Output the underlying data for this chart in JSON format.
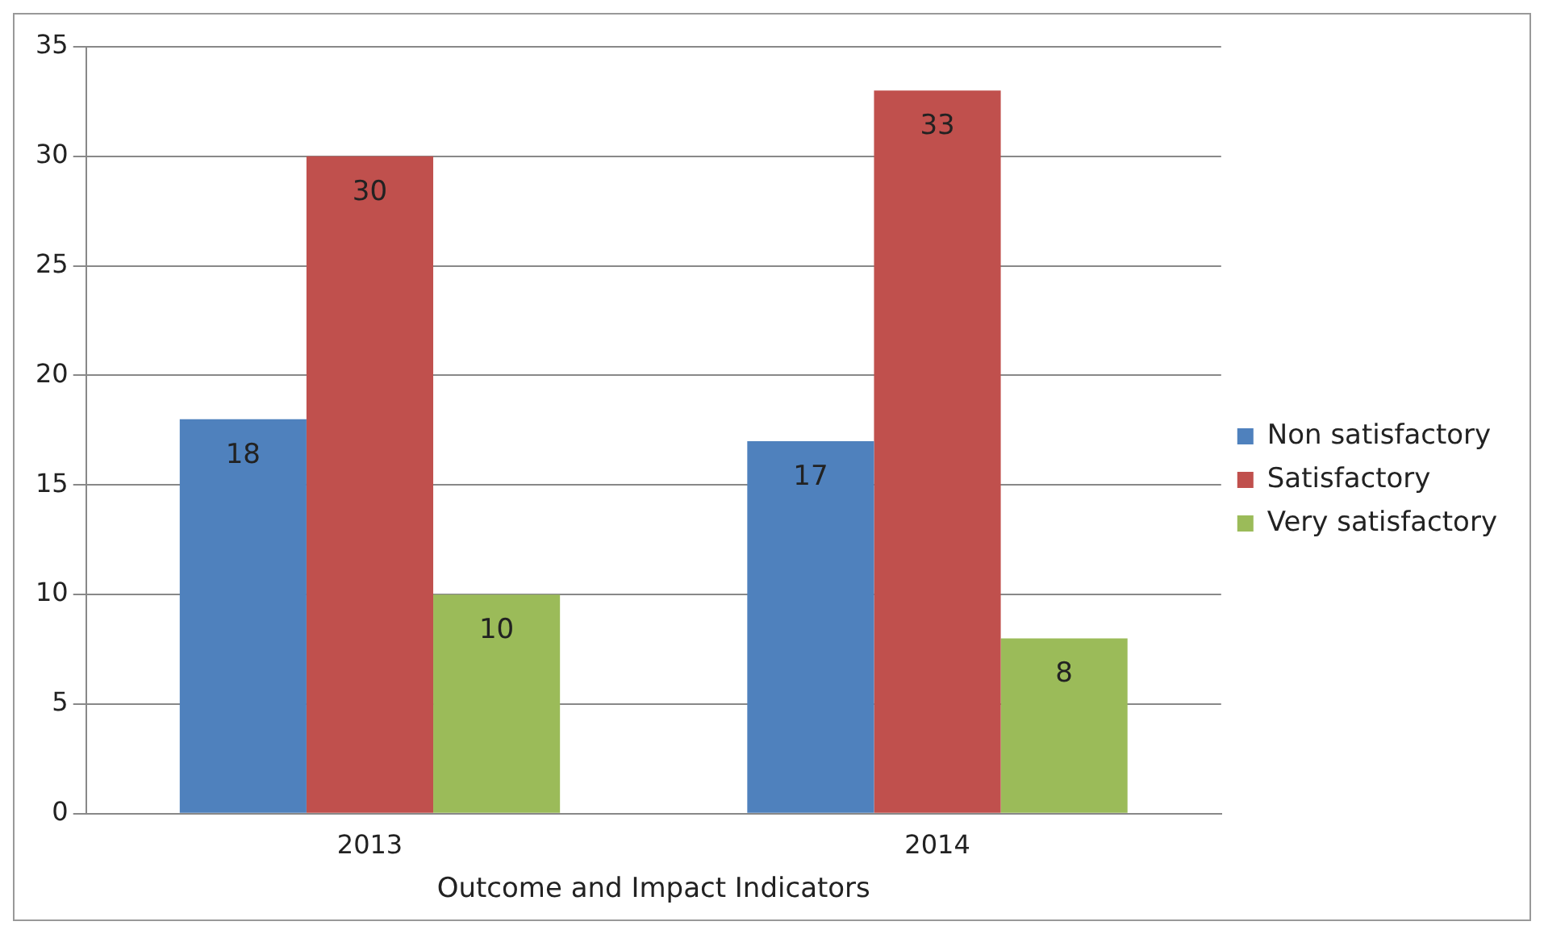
{
  "chart_data": {
    "type": "bar",
    "xlabel": "Outcome and Impact Indicators",
    "categories": [
      "2013",
      "2014"
    ],
    "series": [
      {
        "name": "Non satisfactory",
        "color": "#4f81bd",
        "values": [
          18,
          17
        ]
      },
      {
        "name": "Satisfactory",
        "color": "#c0504d",
        "values": [
          30,
          33
        ]
      },
      {
        "name": "Very satisfactory",
        "color": "#9bbb59",
        "values": [
          10,
          8
        ]
      }
    ],
    "ylim": [
      0,
      35
    ],
    "yticks": [
      0,
      5,
      10,
      15,
      20,
      25,
      30,
      35
    ],
    "grid": "y",
    "legend": "right",
    "data_labels": true
  }
}
